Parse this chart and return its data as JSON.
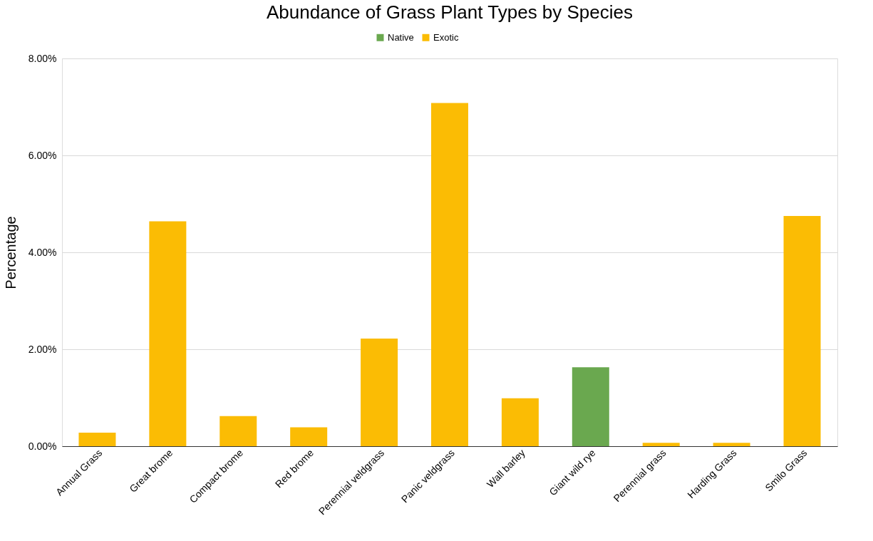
{
  "chart_data": {
    "type": "bar",
    "title": "Abundance of Grass Plant Types by Species",
    "ylabel": "Percentage",
    "categories": [
      "Annual Grass",
      "Great brome",
      "Compact brome",
      "Red brome",
      "Perennial veldgrass",
      "Panic veldgrass",
      "Wall barley",
      "Giant wild rye",
      "Perennial grass",
      "Harding Grass",
      "Smilo Grass"
    ],
    "series": [
      {
        "name": "Native",
        "color": "#6aa84f",
        "values": [
          null,
          null,
          null,
          null,
          null,
          null,
          null,
          1.63,
          null,
          null,
          null
        ]
      },
      {
        "name": "Exotic",
        "color": "#fbbc04",
        "values": [
          0.28,
          4.64,
          0.62,
          0.39,
          2.22,
          7.08,
          0.99,
          null,
          0.07,
          0.07,
          4.75
        ]
      }
    ],
    "ylim": [
      0,
      8
    ],
    "yticks": [
      {
        "value": 0,
        "label": "0.00%"
      },
      {
        "value": 2,
        "label": "2.00%"
      },
      {
        "value": 4,
        "label": "4.00%"
      },
      {
        "value": 6,
        "label": "6.00%"
      },
      {
        "value": 8,
        "label": "8.00%"
      }
    ],
    "grid": "y",
    "legend": "top"
  }
}
